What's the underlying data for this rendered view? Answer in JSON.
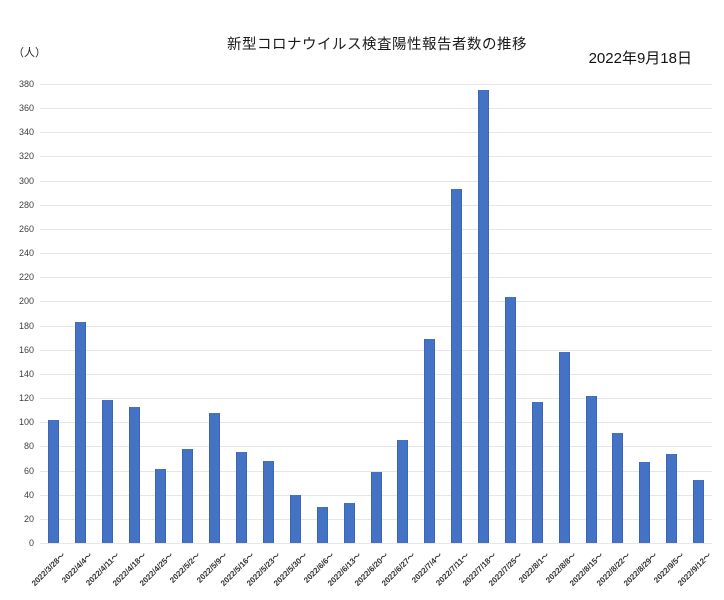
{
  "chart": {
    "title": "新型コロナウイルス検査陽性報告者数の推移",
    "date_label": "2022年9月18日",
    "unit_label": "（人）"
  },
  "chart_data": {
    "type": "bar",
    "title": "新型コロナウイルス検査陽性報告者数の推移",
    "annotation": "2022年9月18日",
    "ylabel": "（人）",
    "xlabel": "",
    "ylim": [
      0,
      380
    ],
    "ytick_step": 20,
    "grid": true,
    "legend_position": "none",
    "bar_color": "#4472c4",
    "gridline_color": "#e6e6e6",
    "categories": [
      "2022/3/28～",
      "2022/4/4～",
      "2022/4/11～",
      "2022/4/18～",
      "2022/4/25～",
      "2022/5/2～",
      "2022/5/9～",
      "2022/5/16～",
      "2022/5/23～",
      "2022/5/30～",
      "2022/6/6～",
      "2022/6/13～",
      "2022/6/20～",
      "2022/6/27～",
      "2022/7/4～",
      "2022/7/11～",
      "2022/7/18～",
      "2022/7/25～",
      "2022/8/1～",
      "2022/8/8～",
      "2022/8/15～",
      "2022/8/22～",
      "2022/8/29～",
      "2022/9/5～",
      "2022/9/12～"
    ],
    "values": [
      102,
      183,
      118,
      113,
      61,
      78,
      108,
      75,
      68,
      40,
      30,
      33,
      59,
      85,
      169,
      293,
      375,
      204,
      117,
      158,
      122,
      91,
      67,
      74,
      52
    ]
  }
}
